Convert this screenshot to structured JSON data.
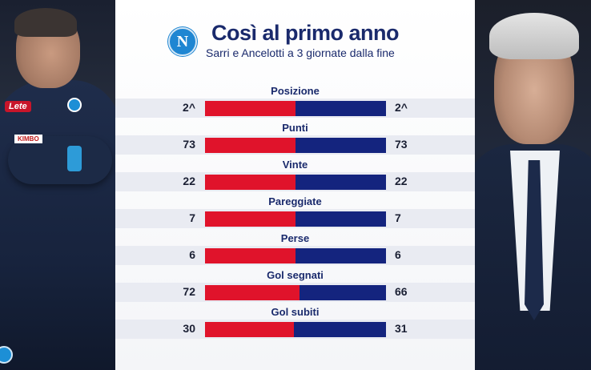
{
  "header": {
    "title": "Così al primo anno",
    "subtitle": "Sarri e Ancelotti a 3 giornate dalla fine",
    "logo_letter": "N"
  },
  "left_photo": {
    "sponsor_1": "Lete",
    "sponsor_2": "KIMBO"
  },
  "colors": {
    "left_bar": "#e0132b",
    "right_bar": "#14247e",
    "title": "#1a2a6c"
  },
  "stats": [
    {
      "label": "Posizione",
      "left": "2^",
      "right": "2^",
      "left_num": 2,
      "right_num": 2
    },
    {
      "label": "Punti",
      "left": "73",
      "right": "73",
      "left_num": 73,
      "right_num": 73
    },
    {
      "label": "Vinte",
      "left": "22",
      "right": "22",
      "left_num": 22,
      "right_num": 22
    },
    {
      "label": "Pareggiate",
      "left": "7",
      "right": "7",
      "left_num": 7,
      "right_num": 7
    },
    {
      "label": "Perse",
      "left": "6",
      "right": "6",
      "left_num": 6,
      "right_num": 6
    },
    {
      "label": "Gol segnati",
      "left": "72",
      "right": "66",
      "left_num": 72,
      "right_num": 66
    },
    {
      "label": "Gol subiti",
      "left": "30",
      "right": "31",
      "left_num": 30,
      "right_num": 31
    }
  ]
}
